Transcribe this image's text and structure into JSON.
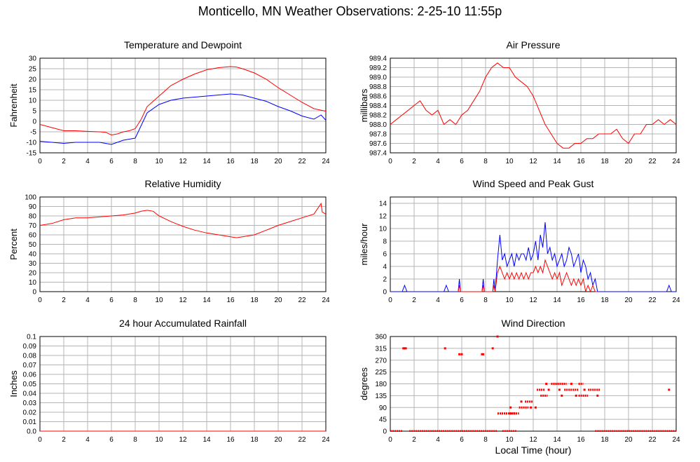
{
  "page": {
    "title": "Monticello, MN Weather Observations: 2-25-10 11:55p",
    "xlabel": "Local Time (hour)"
  },
  "colors": {
    "red": "#ff0000",
    "blue": "#0000ff",
    "grid": "#b4b4b4"
  },
  "chart_data": [
    {
      "id": "temp",
      "type": "line",
      "title": "Temperature and Dewpoint",
      "ylabel": "Fahrenheit",
      "xlim": [
        0,
        24
      ],
      "ylim": [
        -15,
        30
      ],
      "xticks": [
        0,
        2,
        4,
        6,
        8,
        10,
        12,
        14,
        16,
        18,
        20,
        22,
        24
      ],
      "yticks": [
        -15,
        -10,
        -5,
        0,
        5,
        10,
        15,
        20,
        25,
        30
      ],
      "grid": true,
      "series": [
        {
          "color": "#ff0000",
          "x": [
            0,
            1,
            2,
            3,
            4,
            5,
            5.5,
            6,
            6.5,
            7,
            7.5,
            8,
            8.5,
            9,
            10,
            11,
            12,
            13,
            14,
            15,
            16,
            16.5,
            17,
            18,
            19,
            20,
            21,
            22,
            23,
            24
          ],
          "y": [
            -1.5,
            -3,
            -4.5,
            -4.5,
            -4.8,
            -5,
            -5.2,
            -6.5,
            -6,
            -5,
            -4.5,
            -3.5,
            1,
            7,
            12,
            17,
            20,
            22.5,
            24.5,
            25.5,
            26,
            25.8,
            25,
            23,
            20,
            16,
            12.5,
            9,
            6,
            4.8
          ]
        },
        {
          "color": "#0000ff",
          "x": [
            0,
            1,
            2,
            3,
            4,
            5,
            5.5,
            6,
            6.5,
            7,
            7.5,
            8,
            8.5,
            9,
            10,
            11,
            12,
            13,
            14,
            15,
            16,
            17,
            18,
            19,
            20,
            21,
            22,
            23,
            23.6,
            24
          ],
          "y": [
            -9.5,
            -10,
            -10.5,
            -10,
            -10,
            -10,
            -10.5,
            -11,
            -10,
            -9,
            -8.5,
            -8,
            -2,
            4,
            8,
            10,
            11,
            11.5,
            12,
            12.5,
            13,
            12.5,
            11,
            9.5,
            7,
            5,
            2.5,
            1,
            3,
            0.5
          ]
        }
      ]
    },
    {
      "id": "pressure",
      "type": "line",
      "title": "Air Pressure",
      "ylabel": "millibars",
      "xlim": [
        0,
        24
      ],
      "ylim": [
        987.4,
        989.4
      ],
      "xticks": [
        0,
        2,
        4,
        6,
        8,
        10,
        12,
        14,
        16,
        18,
        20,
        22,
        24
      ],
      "yticks": [
        "987.4",
        "987.6",
        "987.8",
        "988.0",
        "988.2",
        "988.4",
        "988.6",
        "988.8",
        "989.0",
        "989.2",
        "989.4"
      ],
      "grid": true,
      "series": [
        {
          "color": "#ff0000",
          "x": [
            0,
            0.5,
            1,
            1.5,
            2,
            2.5,
            3,
            3.5,
            4,
            4.5,
            5,
            5.5,
            6,
            6.5,
            7,
            7.5,
            8,
            8.5,
            9,
            9.5,
            10,
            10.5,
            11,
            11.5,
            12,
            12.5,
            13,
            13.5,
            14,
            14.5,
            15,
            15.5,
            16,
            16.5,
            17,
            17.5,
            18,
            18.5,
            19,
            19.5,
            20,
            20.5,
            21,
            21.5,
            22,
            22.5,
            23,
            23.5,
            24
          ],
          "y": [
            988.0,
            988.1,
            988.2,
            988.3,
            988.4,
            988.5,
            988.3,
            988.2,
            988.3,
            988.0,
            988.1,
            988.0,
            988.2,
            988.3,
            988.5,
            988.7,
            989.0,
            989.2,
            989.3,
            989.2,
            989.2,
            989.0,
            988.9,
            988.8,
            988.6,
            988.3,
            988.0,
            987.8,
            987.6,
            987.5,
            987.5,
            987.6,
            987.6,
            987.7,
            987.7,
            987.8,
            987.8,
            987.8,
            987.9,
            987.7,
            987.6,
            987.8,
            987.8,
            988.0,
            988.0,
            988.1,
            988.0,
            988.1,
            988.0
          ]
        }
      ]
    },
    {
      "id": "humidity",
      "type": "line",
      "title": "Relative Humidity",
      "ylabel": "Percent",
      "xlim": [
        0,
        24
      ],
      "ylim": [
        0,
        100
      ],
      "xticks": [
        0,
        2,
        4,
        6,
        8,
        10,
        12,
        14,
        16,
        18,
        20,
        22,
        24
      ],
      "yticks": [
        0,
        10,
        20,
        30,
        40,
        50,
        60,
        70,
        80,
        90,
        100
      ],
      "grid": true,
      "series": [
        {
          "color": "#ff0000",
          "x": [
            0,
            1,
            2,
            3,
            4,
            5,
            6,
            7,
            8,
            8.5,
            9,
            9.5,
            10,
            11,
            12,
            13,
            14,
            15,
            16,
            16.5,
            17,
            18,
            19,
            20,
            21,
            22,
            23,
            23.6,
            23.7,
            24
          ],
          "y": [
            70,
            72,
            76,
            78,
            78,
            79,
            80,
            81,
            83,
            85,
            86,
            85,
            80,
            74,
            69,
            65,
            62,
            60,
            58,
            57,
            58,
            60,
            65,
            70,
            74,
            78,
            82,
            93,
            84,
            82
          ]
        }
      ]
    },
    {
      "id": "wind",
      "type": "line",
      "title": "Wind Speed and Peak Gust",
      "ylabel": "miles/hour",
      "xlim": [
        0,
        24
      ],
      "ylim": [
        0,
        15
      ],
      "xticks": [
        0,
        2,
        4,
        6,
        8,
        10,
        12,
        14,
        16,
        18,
        20,
        22,
        24
      ],
      "yticks": [
        0,
        2,
        4,
        6,
        8,
        10,
        12,
        14
      ],
      "grid": true,
      "series": [
        {
          "color": "#0000ff",
          "x": [
            0,
            1,
            1.2,
            1.4,
            4.5,
            4.7,
            4.9,
            5.7,
            5.8,
            5.9,
            7.7,
            7.8,
            7.9,
            8.6,
            8.7,
            8.8,
            9.0,
            9.2,
            9.4,
            9.6,
            9.8,
            10.0,
            10.2,
            10.4,
            10.6,
            10.8,
            11.0,
            11.2,
            11.4,
            11.6,
            11.8,
            12.0,
            12.2,
            12.4,
            12.6,
            12.8,
            13.0,
            13.2,
            13.4,
            13.6,
            13.8,
            14.0,
            14.2,
            14.4,
            14.6,
            14.8,
            15.0,
            15.2,
            15.4,
            15.6,
            15.8,
            16.0,
            16.2,
            16.4,
            16.6,
            16.8,
            17.0,
            17.2,
            17.4,
            17.6,
            23.2,
            23.4,
            23.6,
            24
          ],
          "y": [
            0,
            0,
            1,
            0,
            0,
            1,
            0,
            0,
            2,
            0,
            0,
            2,
            0,
            0,
            2,
            0,
            5,
            9,
            5,
            6,
            4,
            5,
            6,
            4,
            6,
            5,
            6,
            6,
            5,
            7,
            5,
            6,
            8,
            5,
            9,
            7,
            11,
            6,
            7,
            5,
            6,
            4,
            5,
            6,
            4,
            5,
            7,
            6,
            4,
            5,
            6,
            3,
            5,
            4,
            2,
            3,
            1,
            2,
            0,
            0,
            0,
            1,
            0,
            0
          ]
        },
        {
          "color": "#ff0000",
          "x": [
            5.7,
            5.8,
            5.9,
            7.7,
            7.8,
            7.9,
            8.6,
            8.7,
            8.8,
            9.0,
            9.2,
            9.4,
            9.6,
            9.8,
            10.0,
            10.2,
            10.4,
            10.6,
            10.8,
            11.0,
            11.2,
            11.4,
            11.6,
            11.8,
            12.0,
            12.2,
            12.4,
            12.6,
            12.8,
            13.0,
            13.2,
            13.4,
            13.6,
            13.8,
            14.0,
            14.2,
            14.4,
            14.6,
            14.8,
            15.0,
            15.2,
            15.4,
            15.6,
            15.8,
            16.0,
            16.2,
            16.4,
            16.6,
            16.8,
            17.0,
            17.2,
            17.4
          ],
          "y": [
            0,
            1,
            0,
            0,
            1,
            0,
            0,
            1,
            0,
            3,
            4,
            3,
            2,
            3,
            2,
            3,
            2,
            3,
            2,
            3,
            2,
            3,
            2,
            3,
            3,
            4,
            3,
            4,
            3,
            5,
            4,
            3,
            2,
            3,
            2,
            3,
            1,
            2,
            3,
            2,
            1,
            2,
            1,
            2,
            1,
            2,
            0,
            1,
            0,
            1,
            0,
            0
          ]
        }
      ]
    },
    {
      "id": "rain",
      "type": "line",
      "title": "24 hour Accumulated Rainfall",
      "ylabel": "Inches",
      "xlim": [
        0,
        24
      ],
      "ylim": [
        0,
        0.1
      ],
      "xticks": [
        0,
        2,
        4,
        6,
        8,
        10,
        12,
        14,
        16,
        18,
        20,
        22,
        24
      ],
      "yticks": [
        "0.0",
        "0.01",
        "0.02",
        "0.03",
        "0.04",
        "0.05",
        "0.06",
        "0.07",
        "0.08",
        "0.09",
        "0.1"
      ],
      "grid": true,
      "series": [
        {
          "color": "#ff0000",
          "x": [
            0,
            24
          ],
          "y": [
            0,
            0
          ]
        }
      ]
    },
    {
      "id": "direction",
      "type": "scatter",
      "title": "Wind Direction",
      "ylabel": "degrees",
      "xlim": [
        0,
        24
      ],
      "ylim": [
        0,
        360
      ],
      "xticks": [
        0,
        2,
        4,
        6,
        8,
        10,
        12,
        14,
        16,
        18,
        20,
        22,
        24
      ],
      "yticks": [
        0,
        45,
        90,
        135,
        180,
        225,
        270,
        315,
        360
      ],
      "grid": true,
      "series": [
        {
          "color": "#ff0000",
          "segments": [
            {
              "x1": 0,
              "x2": 1.0,
              "y": 0
            },
            {
              "x1": 1.6,
              "x2": 9.0,
              "y": 0
            },
            {
              "x1": 9.4,
              "x2": 10.6,
              "y": 0
            },
            {
              "x1": 9.0,
              "x2": 10.2,
              "y": 67.5
            },
            {
              "x1": 10.0,
              "x2": 10.8,
              "y": 67.5
            },
            {
              "x1": 10.8,
              "x2": 11.6,
              "y": 90
            },
            {
              "x1": 11.3,
              "x2": 12.0,
              "y": 112.5
            },
            {
              "x1": 12.3,
              "x2": 13.0,
              "y": 157.5
            },
            {
              "x1": 12.6,
              "x2": 13.2,
              "y": 135
            },
            {
              "x1": 13.5,
              "x2": 14.8,
              "y": 180
            },
            {
              "x1": 14.6,
              "x2": 15.8,
              "y": 157.5
            },
            {
              "x1": 15.8,
              "x2": 16.2,
              "y": 180
            },
            {
              "x1": 15.8,
              "x2": 16.6,
              "y": 135
            },
            {
              "x1": 16.6,
              "x2": 17.6,
              "y": 157.5
            },
            {
              "x1": 17.2,
              "x2": 24,
              "y": 0
            }
          ],
          "points": [
            [
              1.1,
              315
            ],
            [
              1.2,
              315
            ],
            [
              1.3,
              315
            ],
            [
              4.6,
              315
            ],
            [
              5.8,
              292.5
            ],
            [
              6.0,
              292.5
            ],
            [
              7.7,
              292.5
            ],
            [
              7.8,
              292.5
            ],
            [
              8.6,
              315
            ],
            [
              9.0,
              360
            ],
            [
              10.1,
              90
            ],
            [
              10.4,
              67.5
            ],
            [
              11.0,
              112.5
            ],
            [
              11.8,
              90
            ],
            [
              12.2,
              90
            ],
            [
              13.3,
              157.5
            ],
            [
              13.1,
              180
            ],
            [
              14.2,
              157.5
            ],
            [
              14.4,
              135
            ],
            [
              15.2,
              180
            ],
            [
              15.6,
              135
            ],
            [
              16.3,
              157.5
            ],
            [
              17.4,
              135
            ],
            [
              23.4,
              157.5
            ]
          ]
        }
      ]
    }
  ]
}
